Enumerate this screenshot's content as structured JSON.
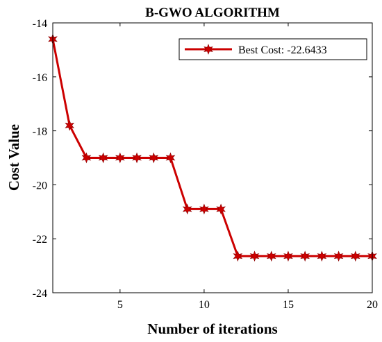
{
  "chart_data": {
    "type": "line",
    "title": "B-GWO ALGORITHM",
    "xlabel": "Number of iterations",
    "ylabel": "Cost Value",
    "xlim": [
      1,
      20
    ],
    "ylim": [
      -24,
      -14
    ],
    "xticks": [
      "5",
      "10",
      "15",
      "20"
    ],
    "yticks": [
      "-14",
      "-16",
      "-18",
      "-20",
      "-22",
      "-24"
    ],
    "grid": false,
    "legend_position": "top-right",
    "series": [
      {
        "name": "Best Cost: -22.6433",
        "color": "#cc0000",
        "marker": "hexagram",
        "x": [
          1,
          2,
          3,
          4,
          5,
          6,
          7,
          8,
          9,
          10,
          11,
          12,
          13,
          14,
          15,
          16,
          17,
          18,
          19,
          20
        ],
        "y": [
          -14.6,
          -17.8,
          -19.0,
          -19.0,
          -19.0,
          -19.0,
          -19.0,
          -19.0,
          -20.9,
          -20.9,
          -20.9,
          -22.6433,
          -22.6433,
          -22.6433,
          -22.6433,
          -22.6433,
          -22.6433,
          -22.6433,
          -22.6433,
          -22.6433
        ]
      }
    ]
  }
}
